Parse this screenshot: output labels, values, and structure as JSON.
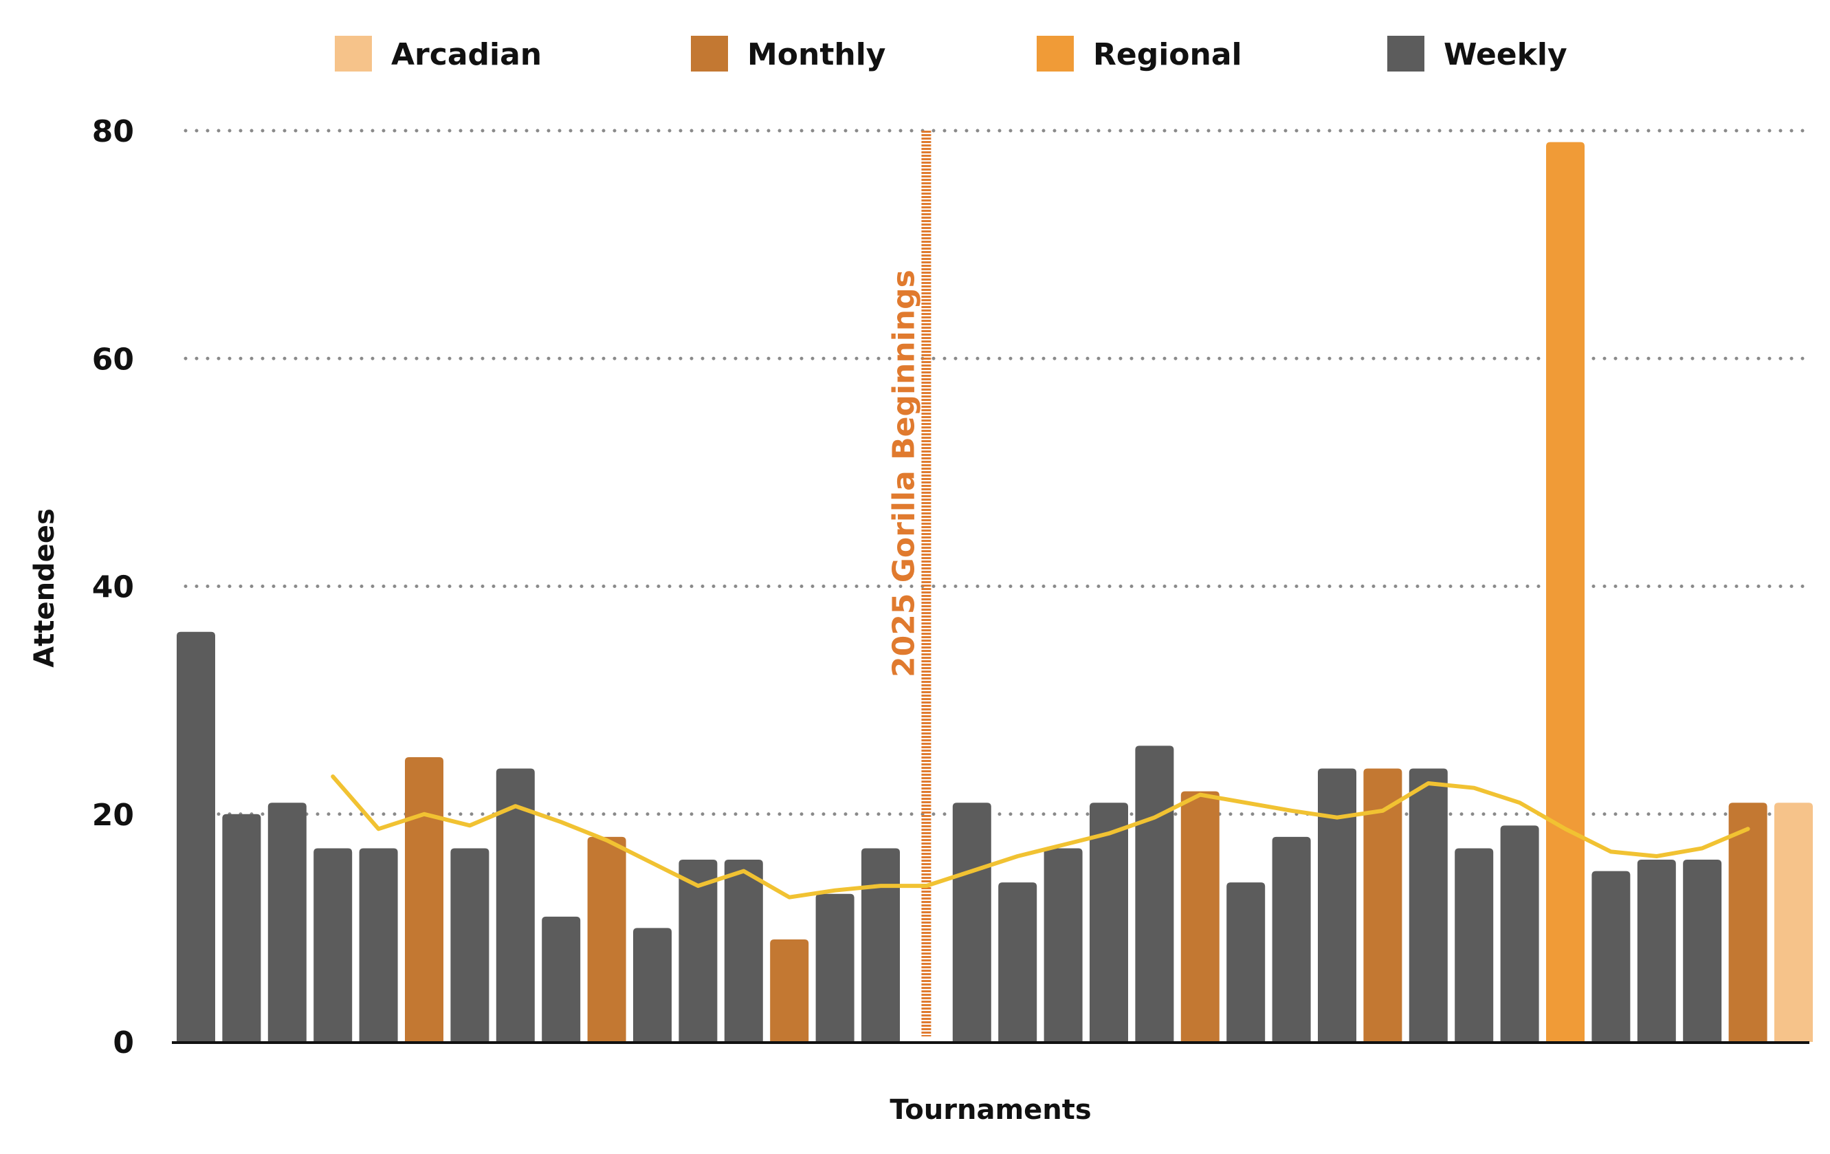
{
  "chart_data": {
    "type": "bar",
    "xlabel": "Tournaments",
    "ylabel": "Attendees",
    "ylim": [
      0,
      80
    ],
    "yticks": [
      0,
      20,
      40,
      60,
      80
    ],
    "grid": "horizontal dotted",
    "legend_position": "top",
    "legend": [
      {
        "name": "Arcadian",
        "color": "#f6c38a"
      },
      {
        "name": "Monthly",
        "color": "#c37832"
      },
      {
        "name": "Regional",
        "color": "#f09b37"
      },
      {
        "name": "Weekly",
        "color": "#5c5c5c"
      }
    ],
    "bars": [
      {
        "category": "Weekly",
        "value": 36
      },
      {
        "category": "Weekly",
        "value": 20
      },
      {
        "category": "Weekly",
        "value": 21
      },
      {
        "category": "Weekly",
        "value": 17
      },
      {
        "category": "Weekly",
        "value": 17
      },
      {
        "category": "Monthly",
        "value": 25
      },
      {
        "category": "Weekly",
        "value": 17
      },
      {
        "category": "Weekly",
        "value": 24
      },
      {
        "category": "Weekly",
        "value": 11
      },
      {
        "category": "Monthly",
        "value": 18
      },
      {
        "category": "Weekly",
        "value": 10
      },
      {
        "category": "Weekly",
        "value": 16
      },
      {
        "category": "Weekly",
        "value": 16
      },
      {
        "category": "Monthly",
        "value": 9
      },
      {
        "category": "Weekly",
        "value": 13
      },
      {
        "category": "Weekly",
        "value": 17
      },
      {
        "category": "gap",
        "value": null
      },
      {
        "category": "Weekly",
        "value": 21
      },
      {
        "category": "Weekly",
        "value": 14
      },
      {
        "category": "Weekly",
        "value": 17
      },
      {
        "category": "Weekly",
        "value": 21
      },
      {
        "category": "Weekly",
        "value": 26
      },
      {
        "category": "Monthly",
        "value": 22
      },
      {
        "category": "Weekly",
        "value": 14
      },
      {
        "category": "Weekly",
        "value": 18
      },
      {
        "category": "Weekly",
        "value": 24
      },
      {
        "category": "Monthly",
        "value": 24
      },
      {
        "category": "Weekly",
        "value": 24
      },
      {
        "category": "Weekly",
        "value": 17
      },
      {
        "category": "Weekly",
        "value": 19
      },
      {
        "category": "Regional",
        "value": 79
      },
      {
        "category": "Weekly",
        "value": 15
      },
      {
        "category": "Weekly",
        "value": 16
      },
      {
        "category": "Weekly",
        "value": 16
      },
      {
        "category": "Monthly",
        "value": 21
      },
      {
        "category": "Arcadian",
        "value": 21
      }
    ],
    "trend_line": {
      "color": "#f1c232",
      "points": [
        {
          "slot": 3,
          "value": 23.3
        },
        {
          "slot": 4,
          "value": 18.7
        },
        {
          "slot": 5,
          "value": 20
        },
        {
          "slot": 6,
          "value": 19
        },
        {
          "slot": 7,
          "value": 20.7
        },
        {
          "slot": 8,
          "value": 19.3
        },
        {
          "slot": 9,
          "value": 17.7
        },
        {
          "slot": 10,
          "value": 15.7
        },
        {
          "slot": 11,
          "value": 13.7
        },
        {
          "slot": 12,
          "value": 15
        },
        {
          "slot": 13,
          "value": 12.7
        },
        {
          "slot": 14,
          "value": 13.3
        },
        {
          "slot": 15,
          "value": 13.7
        },
        {
          "slot": 16,
          "value": 13.7
        },
        {
          "slot": 17,
          "value": 15
        },
        {
          "slot": 18,
          "value": 16.3
        },
        {
          "slot": 19,
          "value": 17.3
        },
        {
          "slot": 20,
          "value": 18.3
        },
        {
          "slot": 21,
          "value": 19.7
        },
        {
          "slot": 22,
          "value": 21.7
        },
        {
          "slot": 23,
          "value": 21
        },
        {
          "slot": 24,
          "value": 20.3
        },
        {
          "slot": 25,
          "value": 19.7
        },
        {
          "slot": 26,
          "value": 20.3
        },
        {
          "slot": 27,
          "value": 22.7
        },
        {
          "slot": 28,
          "value": 22.3
        },
        {
          "slot": 29,
          "value": 21
        },
        {
          "slot": 30,
          "value": 18.7
        },
        {
          "slot": 31,
          "value": 16.7
        },
        {
          "slot": 32,
          "value": 16.3
        },
        {
          "slot": 33,
          "value": 17
        },
        {
          "slot": 34,
          "value": 18.7
        }
      ]
    },
    "annotation": {
      "text": "2025 Gorilla Beginnings",
      "slot": 16,
      "color": "#e07a2e"
    }
  }
}
